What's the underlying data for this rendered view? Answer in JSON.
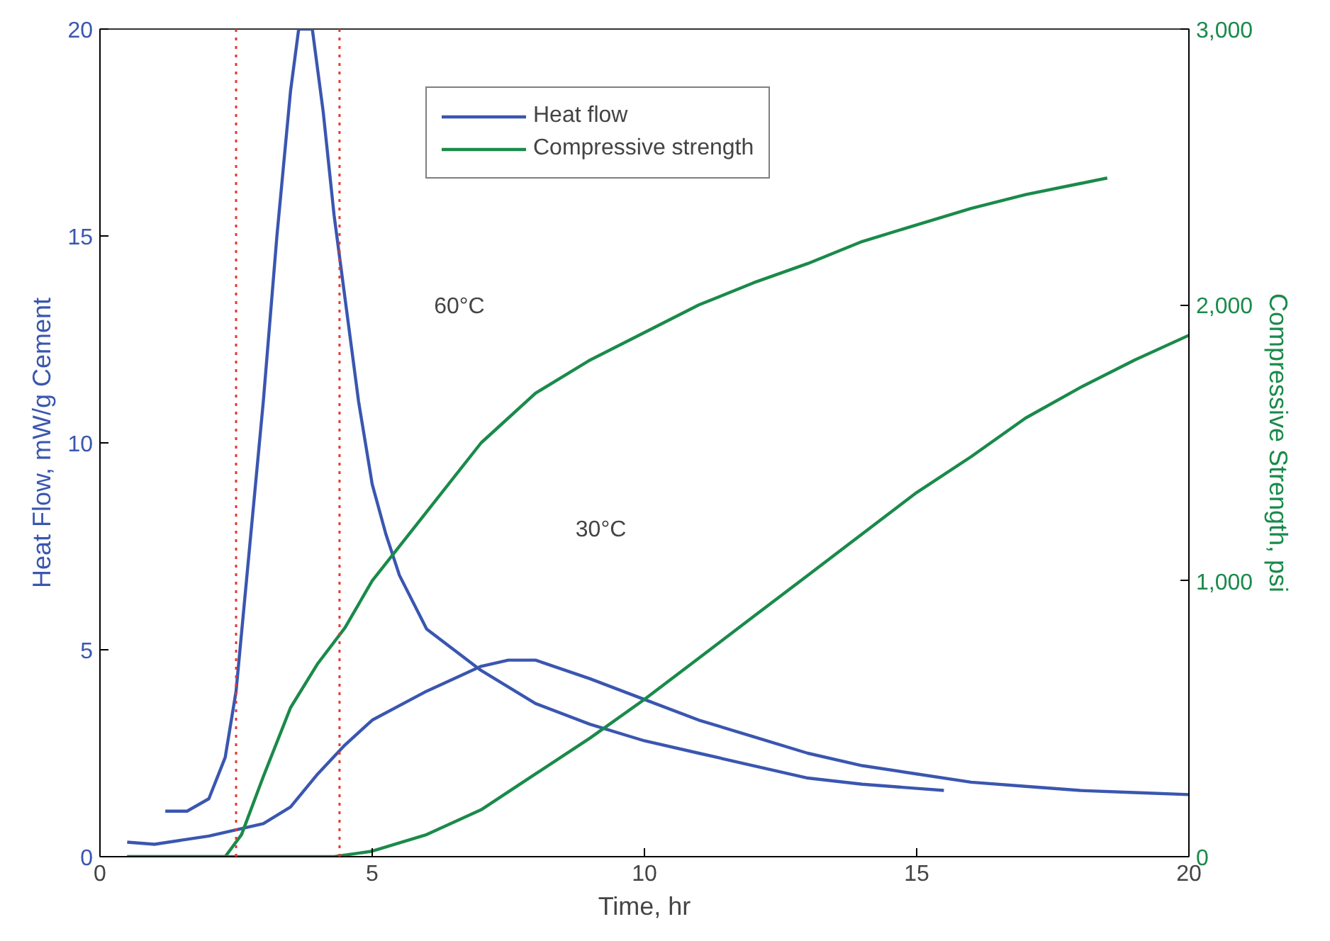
{
  "chart_data": {
    "type": "line",
    "xlabel": "Time, hr",
    "ylabel": "Heat Flow, mW/g Cement",
    "y2label": "Compressive Strength, psi",
    "xlim": [
      0,
      20
    ],
    "xticks": [
      0,
      5,
      10,
      15,
      20
    ],
    "ylim": [
      0,
      20
    ],
    "yticks": [
      0,
      5,
      10,
      15,
      20
    ],
    "y2lim": [
      0,
      3000
    ],
    "y2ticks": [
      {
        "value": 0,
        "label": "0"
      },
      {
        "value": 1000,
        "label": "1,000"
      },
      {
        "value": 2000,
        "label": "2,000"
      },
      {
        "value": 3000,
        "label": "3,000"
      }
    ],
    "grid": false,
    "legend": "top",
    "marker": "none",
    "line_style": "solid",
    "series": [
      {
        "name": "Heat flow",
        "color": "#3a56b0",
        "x": [
          1.2,
          1.6,
          2.0,
          2.3,
          2.5,
          2.75,
          3.0,
          3.25,
          3.5,
          3.65,
          3.9,
          4.1,
          4.3,
          4.5,
          4.75,
          5.0,
          5.25,
          5.5,
          6.0,
          6.5,
          7.0,
          8.0,
          9.0,
          10.0,
          11.0,
          12.0,
          13.0,
          14.0,
          15.0,
          15.5
        ],
        "values": [
          1.1,
          1.1,
          1.4,
          2.4,
          4.0,
          7.5,
          11.0,
          15.0,
          18.5,
          20.0,
          20.0,
          18.0,
          15.5,
          13.5,
          11.0,
          9.0,
          7.8,
          6.8,
          5.5,
          5.0,
          4.5,
          3.7,
          3.2,
          2.8,
          2.5,
          2.2,
          1.9,
          1.75,
          1.65,
          1.6
        ]
      },
      {
        "color": "#3a56b0",
        "x": [
          0.5,
          1.0,
          1.5,
          2.0,
          2.5,
          3.0,
          3.5,
          4.0,
          4.5,
          5.0,
          6.0,
          7.0,
          7.5,
          8.0,
          9.0,
          10.0,
          11.0,
          12.0,
          13.0,
          14.0,
          15.0,
          16.0,
          17.0,
          18.0,
          19.0,
          20.0
        ],
        "values": [
          0.35,
          0.3,
          0.4,
          0.5,
          0.65,
          0.8,
          1.2,
          2.0,
          2.7,
          3.3,
          4.0,
          4.6,
          4.75,
          4.75,
          4.3,
          3.8,
          3.3,
          2.9,
          2.5,
          2.2,
          2.0,
          1.8,
          1.7,
          1.6,
          1.55,
          1.5
        ]
      },
      {
        "name": "Compressive strength",
        "color": "#1a8a4a",
        "axis": "y2",
        "x": [
          0.5,
          1.0,
          2.0,
          2.3,
          2.6,
          3.0,
          3.5,
          4.0,
          4.5,
          5.0,
          6.0,
          7.0,
          8.0,
          9.0,
          10.0,
          11.0,
          12.0,
          13.0,
          14.0,
          15.0,
          16.0,
          17.0,
          18.0,
          18.5
        ],
        "values": [
          0,
          0,
          0,
          0,
          80,
          290,
          540,
          700,
          830,
          1000,
          1250,
          1500,
          1680,
          1800,
          1900,
          2000,
          2080,
          2150,
          2230,
          2290,
          2350,
          2400,
          2440,
          2460
        ]
      },
      {
        "color": "#1a8a4a",
        "axis": "y2",
        "x": [
          0.5,
          2.0,
          3.0,
          4.3,
          5.0,
          6.0,
          7.0,
          8.0,
          9.0,
          10.0,
          11.0,
          12.0,
          13.0,
          14.0,
          15.0,
          16.0,
          17.0,
          18.0,
          19.0,
          20.0
        ],
        "values": [
          0,
          0,
          0,
          0,
          20,
          80,
          170,
          300,
          430,
          570,
          720,
          870,
          1020,
          1170,
          1320,
          1450,
          1590,
          1700,
          1800,
          1890
        ]
      }
    ],
    "ref_lines": [
      {
        "axis": "x",
        "value": 2.5,
        "color": "#e8352e",
        "line_style": "dotted"
      },
      {
        "axis": "x",
        "value": 4.4,
        "color": "#e8352e",
        "line_style": "dotted"
      }
    ],
    "annotations": [
      "60°C",
      "30°C"
    ]
  }
}
